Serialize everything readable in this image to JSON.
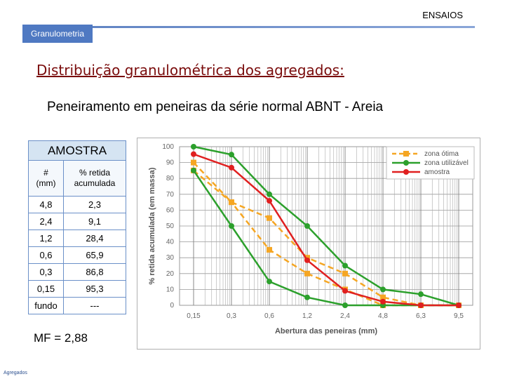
{
  "header": {
    "label": "ENSAIOS",
    "section_tab": "Granulometria"
  },
  "title": "Distribuição granulométrica dos agregados:",
  "subtitle": "Peneiramento em peneiras da série normal ABNT - Areia",
  "table": {
    "caption": "AMOSTRA",
    "columns": [
      "#\n(mm)",
      "% retida\nacumulada"
    ],
    "rows": [
      [
        "4,8",
        "2,3"
      ],
      [
        "2,4",
        "9,1"
      ],
      [
        "1,2",
        "28,4"
      ],
      [
        "0,6",
        "65,9"
      ],
      [
        "0,3",
        "86,8"
      ],
      [
        "0,15",
        "95,3"
      ],
      [
        "fundo",
        "---"
      ]
    ]
  },
  "fineness_modulus": "MF = 2,88",
  "footer": "Agregados",
  "chart_data": {
    "type": "line",
    "xlabel": "Abertura das peneiras (mm)",
    "ylabel": "% retida acumulada (em massa)",
    "categories": [
      "0,15",
      "0,3",
      "0,6",
      "1,2",
      "2,4",
      "4,8",
      "6,3",
      "9,5"
    ],
    "ylim": [
      0,
      100
    ],
    "yticks": [
      0,
      10,
      20,
      30,
      40,
      50,
      60,
      70,
      80,
      90,
      100
    ],
    "grid": true,
    "legend_position": "top-right",
    "series": [
      {
        "name": "zona ótima",
        "color": "#f5a623",
        "marker": "square",
        "dashed": true,
        "values": [
          [
            90,
            85
          ],
          [
            65,
            65
          ],
          [
            55,
            35
          ],
          [
            30,
            20
          ],
          [
            20,
            10
          ],
          [
            5,
            0
          ],
          [
            0,
            0
          ],
          [
            0,
            0
          ]
        ]
      },
      {
        "name": "zona utilizável",
        "color": "#2ca02c",
        "marker": "circle",
        "dashed": false,
        "values": [
          [
            100,
            85
          ],
          [
            95,
            50
          ],
          [
            70,
            15
          ],
          [
            50,
            5
          ],
          [
            25,
            0
          ],
          [
            10,
            0
          ],
          [
            7,
            0
          ],
          [
            0,
            0
          ]
        ]
      },
      {
        "name": "amostra",
        "color": "#e02020",
        "marker": "circle",
        "dashed": false,
        "values": [
          95.3,
          86.8,
          65.9,
          28.4,
          9.1,
          2.3,
          0,
          0
        ]
      }
    ]
  }
}
